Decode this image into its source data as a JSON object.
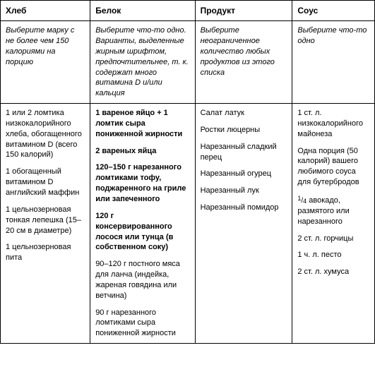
{
  "columns": [
    {
      "header": "Хлеб",
      "instruction": "Выберите марку с не более чем 150 калориями на порцию"
    },
    {
      "header": "Белок",
      "instruction": "Выберите что-то одно. Варианты, выделенные жирным шрифтом, предпочтительнее, т. к. содержат много витамина D и/или кальция"
    },
    {
      "header": "Продукт",
      "instruction": "Выберите неограниченное количество любых продуктов из этого списка"
    },
    {
      "header": "Соус",
      "instruction": "Выберите что-то одно"
    }
  ],
  "options": {
    "bread": [
      {
        "text": "1 или 2 ломтика низкокалорийного хлеба, обогащенного витамином D (всего 150 калорий)",
        "bold": false
      },
      {
        "text": "1 обогащенный витамином D английский маффин",
        "bold": false
      },
      {
        "text": "1 цельнозерновая тонкая лепешка (15–20 см в диаметре)",
        "bold": false
      },
      {
        "text": "1 цельнозерновая пита",
        "bold": false
      }
    ],
    "protein": [
      {
        "text": "1 вареное яйцо + 1 ломтик сыра пониженной жирности",
        "bold": true
      },
      {
        "text": "2 вареных яйца",
        "bold": true
      },
      {
        "text": "120–150 г нарезанного ломтиками тофу, поджаренного на гриле или запеченного",
        "bold": true
      },
      {
        "text": "120 г консервированного лосося или тунца (в собственном соку)",
        "bold": true
      },
      {
        "text": "90–120 г постного мяса для ланча (индейка, жареная говядина или ветчина)",
        "bold": false
      },
      {
        "text": "90 г нарезанного ломтиками сыра пониженной жирности",
        "bold": false
      }
    ],
    "produce": [
      {
        "text": "Салат латук",
        "bold": false
      },
      {
        "text": "Ростки люцерны",
        "bold": false
      },
      {
        "text": "Нарезанный сладкий перец",
        "bold": false
      },
      {
        "text": "Нарезанный огурец",
        "bold": false
      },
      {
        "text": "Нарезанный лук",
        "bold": false
      },
      {
        "text": "Нарезанный помидор",
        "bold": false
      }
    ],
    "sauce": [
      {
        "text": "1 ст. л. низкокалорийного майонеза",
        "bold": false
      },
      {
        "text": "Одна порция (50 калорий) вашего любимого соуса для бутербродов",
        "bold": false
      },
      {
        "text": "¼ авокадо, размятого или нарезанного",
        "bold": false,
        "fraction": true
      },
      {
        "text": "2 ст. л. горчицы",
        "bold": false
      },
      {
        "text": "1 ч. л. песто",
        "bold": false
      },
      {
        "text": "2 ст. л. хумуса",
        "bold": false
      }
    ]
  }
}
